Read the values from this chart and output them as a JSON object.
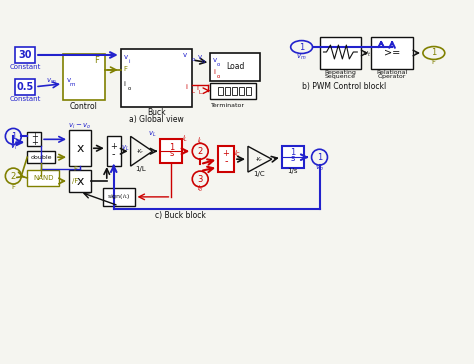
{
  "title_a": "a) Global view",
  "title_b": "b) PWM Control blockl",
  "title_c": "c) Buck block",
  "bg_color": "#f5f5f0",
  "blue": "#2222cc",
  "olive": "#808000",
  "red": "#cc0000",
  "black": "#111111",
  "gray": "#888888"
}
